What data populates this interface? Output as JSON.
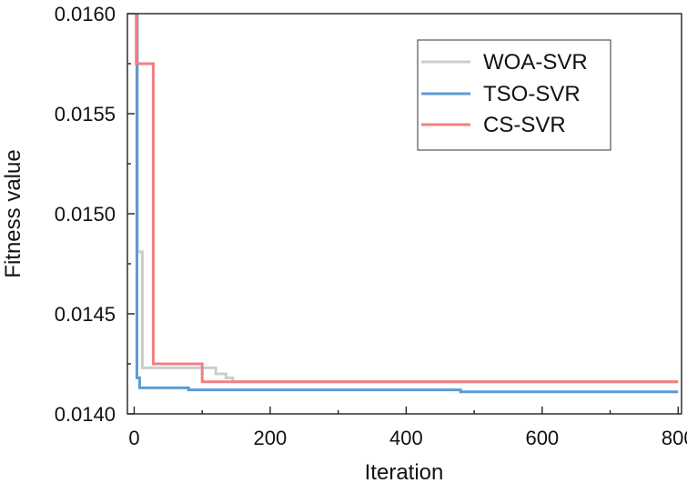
{
  "chart_data": {
    "type": "line",
    "title": "",
    "xlabel": "Iteration",
    "ylabel": "Fitness value",
    "xlim": [
      -10,
      805
    ],
    "ylim": [
      0.014,
      0.016
    ],
    "x_ticks": [
      0,
      200,
      400,
      600,
      800
    ],
    "x_tick_labels": [
      "0",
      "200",
      "400",
      "600",
      "800"
    ],
    "y_ticks": [
      0.014,
      0.0145,
      0.015,
      0.0155,
      0.016
    ],
    "y_tick_labels": [
      "0.0140",
      "0.0145",
      "0.0150",
      "0.0155",
      "0.0160"
    ],
    "legend_position": "top-right",
    "series": [
      {
        "name": "WOA-SVR",
        "color": "#cccccc",
        "x": [
          1,
          5,
          5,
          12,
          12,
          120,
          120,
          135,
          135,
          145,
          145,
          800
        ],
        "y": [
          0.016,
          0.016,
          0.01481,
          0.01481,
          0.01423,
          0.01423,
          0.0142,
          0.0142,
          0.01418,
          0.01418,
          0.01416,
          0.01416
        ]
      },
      {
        "name": "TSO-SVR",
        "color": "#5b9bd5",
        "x": [
          1,
          4,
          4,
          8,
          8,
          80,
          80,
          480,
          480,
          800
        ],
        "y": [
          0.016,
          0.016,
          0.01418,
          0.01418,
          0.01413,
          0.01413,
          0.01412,
          0.01412,
          0.01411,
          0.01411
        ]
      },
      {
        "name": "CS-SVR",
        "color": "#f08080",
        "x": [
          1,
          3,
          3,
          28,
          28,
          100,
          100,
          800
        ],
        "y": [
          0.016,
          0.016,
          0.01575,
          0.01575,
          0.01425,
          0.01425,
          0.01416,
          0.01416
        ]
      }
    ]
  }
}
